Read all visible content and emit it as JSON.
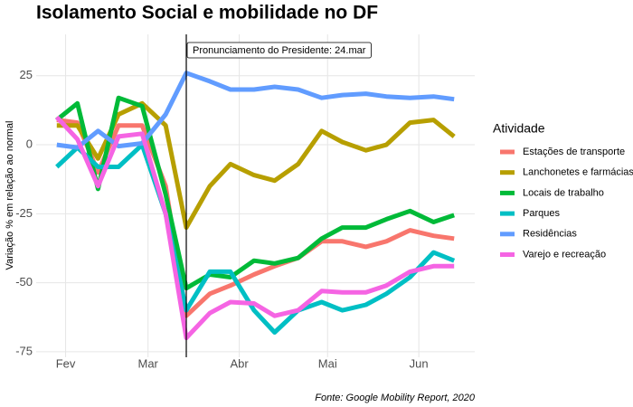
{
  "chart_data": {
    "type": "line",
    "title": "Isolamento Social e mobilidade no DF",
    "y_label": "Variação % em relação ao normal",
    "caption": "Fonte: Google Mobility Report, 2020",
    "legend_title": "Atividade",
    "legend": "right",
    "grid": true,
    "x": [
      29,
      36,
      43,
      50,
      58,
      66,
      73,
      81,
      88,
      96,
      103,
      111,
      119,
      126,
      134,
      141,
      149,
      157,
      164
    ],
    "xlim": [
      22,
      171
    ],
    "xticks": [
      {
        "value": 32,
        "label": "Fev"
      },
      {
        "value": 60,
        "label": "Mar"
      },
      {
        "value": 91,
        "label": "Abr"
      },
      {
        "value": 121,
        "label": "Mai"
      },
      {
        "value": 152,
        "label": "Jun"
      }
    ],
    "ylim": [
      -77,
      40
    ],
    "yticks": [
      25,
      0,
      -25,
      -50,
      -75
    ],
    "annotations": [
      {
        "x": 73,
        "label": "Pronunciamento do Presidente: 24.mar"
      }
    ],
    "series": [
      {
        "name": "Estações de transporte",
        "color": "#F8766D",
        "values": [
          9,
          8,
          -10,
          7,
          7,
          -15,
          -62,
          -54,
          -51,
          -47,
          -44,
          -41,
          -35,
          -35,
          -37,
          -35,
          -31,
          -33,
          -34
        ]
      },
      {
        "name": "Lanchonetes e farmácias",
        "color": "#B79F00",
        "values": [
          7,
          7,
          -5,
          11,
          15,
          7,
          -30,
          -15,
          -7,
          -11,
          -13,
          -7,
          5,
          1,
          -2,
          0,
          8,
          9,
          3
        ]
      },
      {
        "name": "Locais de trabalho",
        "color": "#00BA38",
        "values": [
          9,
          15,
          -16,
          17,
          14,
          -18,
          -52,
          -47,
          -48,
          -42,
          -43,
          -41,
          -34,
          -30,
          -30,
          -27,
          -24,
          -28,
          -25.5
        ]
      },
      {
        "name": "Parques",
        "color": "#00BFC4",
        "values": [
          -8,
          -1,
          -8,
          -8,
          0,
          -25,
          -60,
          -46,
          -46,
          -60,
          -68,
          -60,
          -57,
          -60,
          -58,
          -54,
          -48,
          -39,
          -42
        ]
      },
      {
        "name": "Residências",
        "color": "#619CFF",
        "values": [
          0,
          -1,
          5,
          -0.5,
          0.5,
          11,
          26,
          23,
          20,
          20,
          21,
          20,
          17,
          18,
          18.5,
          17.5,
          17,
          17.5,
          16.5
        ]
      },
      {
        "name": "Varejo e recreação",
        "color": "#F564E3",
        "values": [
          10,
          2,
          -15,
          3,
          4,
          -25,
          -70,
          -61,
          -57,
          -57.5,
          -62,
          -60,
          -53,
          -53.5,
          -53.5,
          -51,
          -46,
          -44,
          -44
        ]
      }
    ]
  }
}
